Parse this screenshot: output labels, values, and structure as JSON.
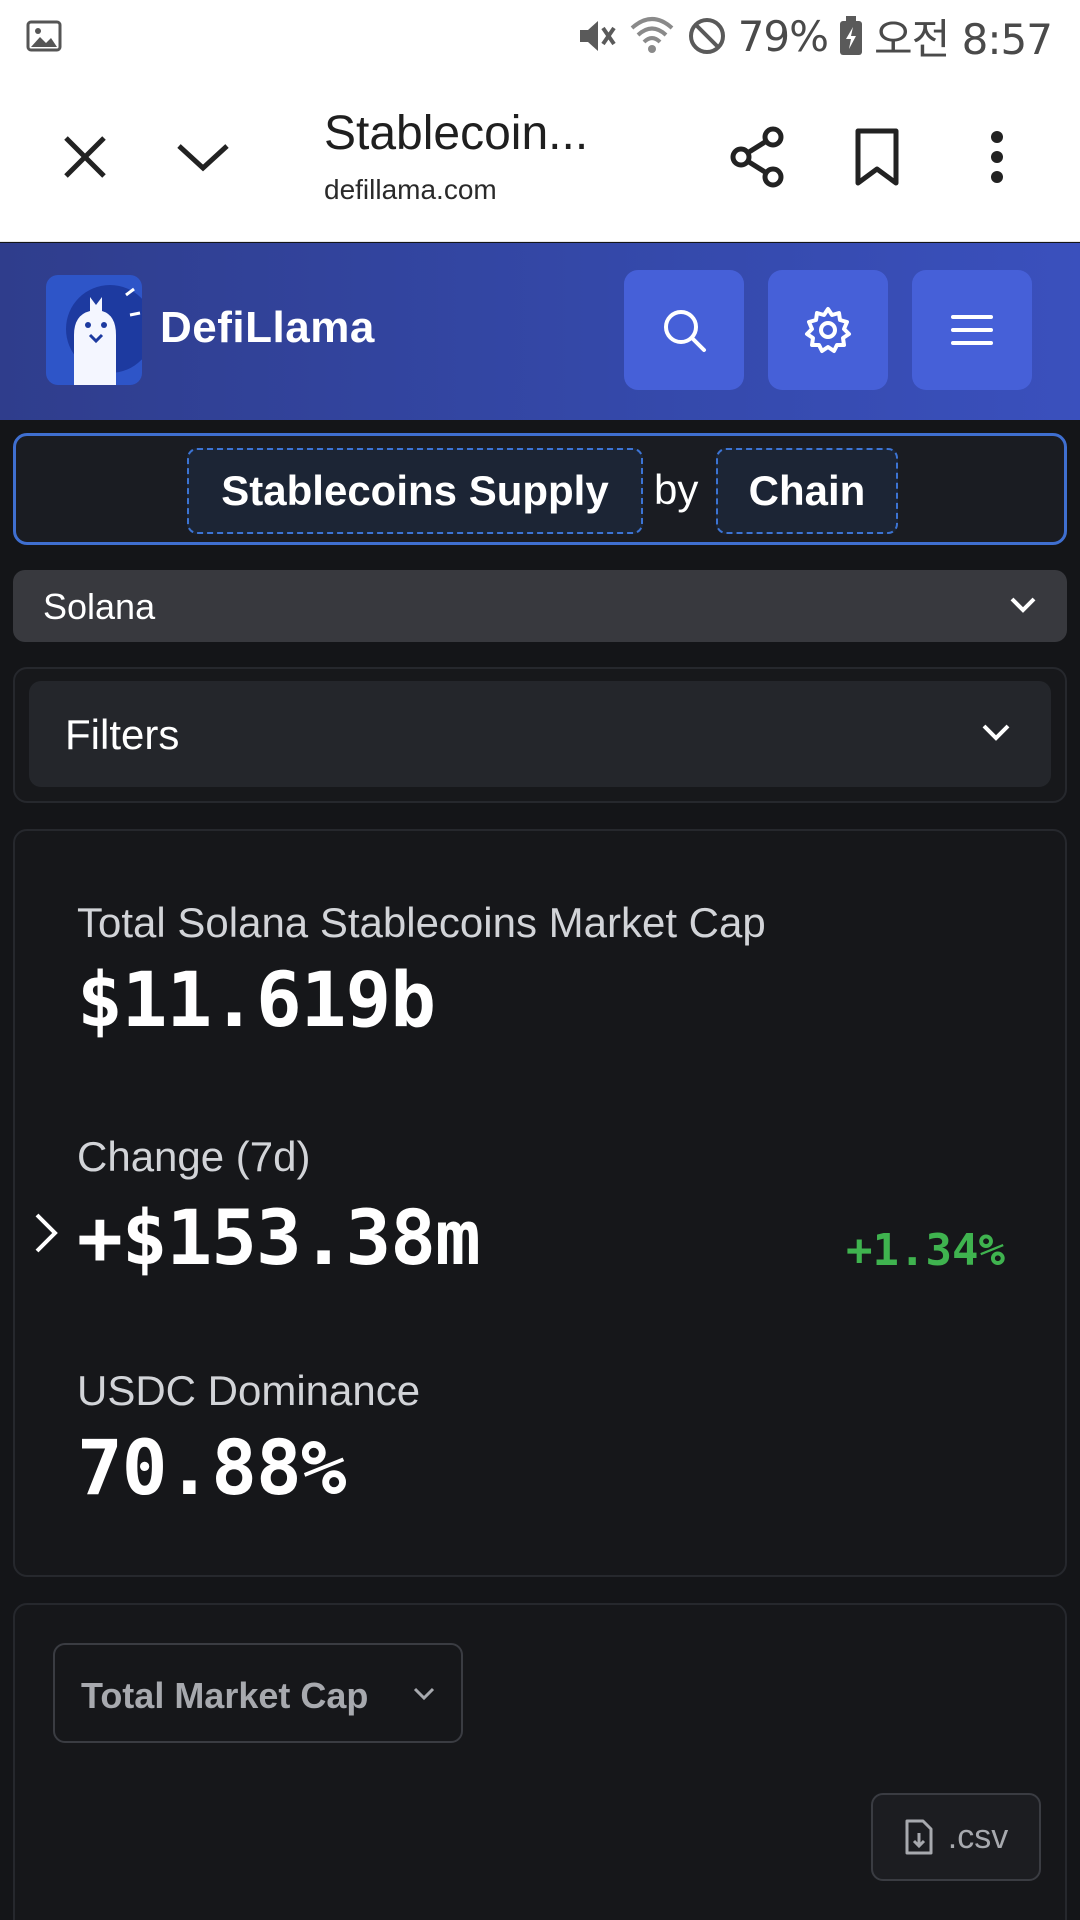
{
  "status_bar": {
    "battery": "79%",
    "time": "오전 8:57"
  },
  "browser": {
    "title": "Stablecoin...",
    "url": "defillama.com"
  },
  "site": {
    "brand": "DefiLlama"
  },
  "title_selector": {
    "metric": "Stablecoins Supply",
    "connector": "by",
    "dimension": "Chain"
  },
  "chain_select": {
    "value": "Solana"
  },
  "filters": {
    "label": "Filters"
  },
  "stats": {
    "total_label": "Total Solana Stablecoins Market Cap",
    "total_value": "$11.619b",
    "change_label": "Change (7d)",
    "change_value": "+$153.38m",
    "change_pct": "+1.34%",
    "dominance_label": "USDC Dominance",
    "dominance_value": "70.88%"
  },
  "chart_controls": {
    "metric_select": "Total Market Cap",
    "csv_label": ".csv"
  },
  "colors": {
    "header_blue": "#3448a8",
    "button_blue": "#4660d8",
    "positive_green": "#3fb34f",
    "background": "#141518"
  },
  "icons": [
    "image-icon",
    "mute-icon",
    "wifi-icon",
    "dnd-icon",
    "battery-icon",
    "close-icon",
    "chevron-down-icon",
    "share-icon",
    "bookmark-icon",
    "more-vert-icon",
    "llama-logo",
    "search-icon",
    "gear-icon",
    "menu-icon",
    "chevron-right-icon",
    "file-download-icon"
  ]
}
